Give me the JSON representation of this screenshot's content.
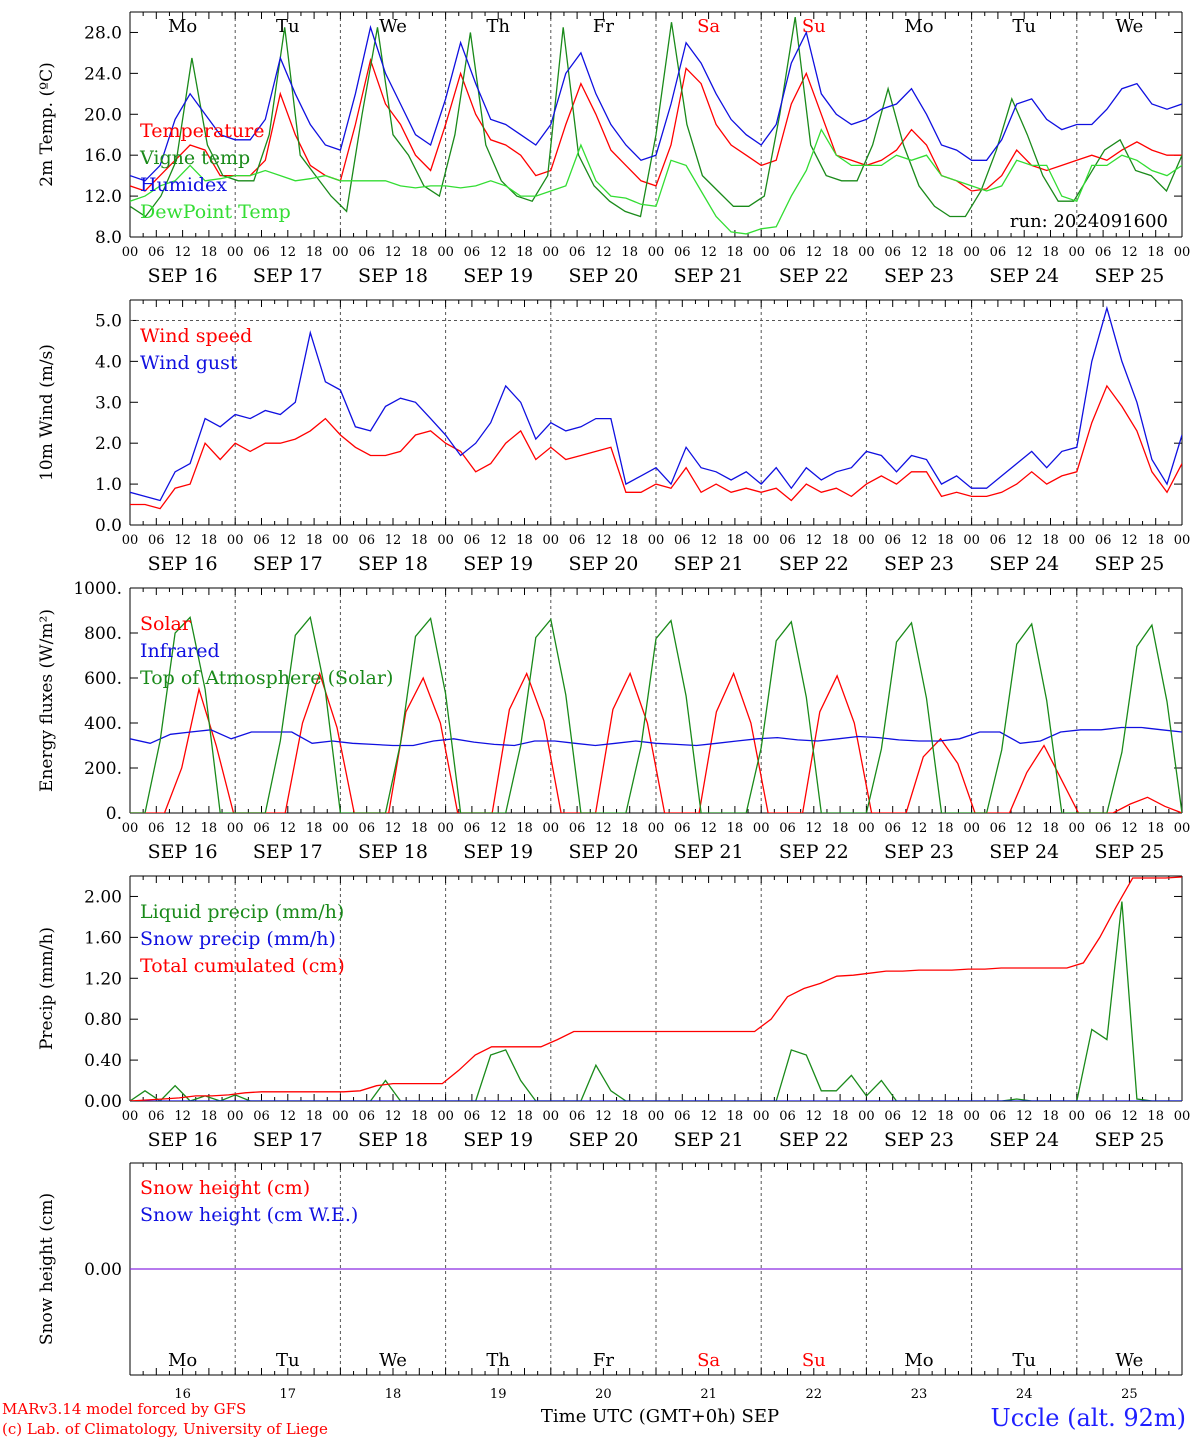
{
  "footer": {
    "model": "MARv3.14 model forced by GFS",
    "credit": "(c) Lab. of Climatology, University of Liege",
    "station": "Uccle (alt. 92m)",
    "xlabel": "Time UTC (GMT+0h)",
    "month": "SEP"
  },
  "colors": {
    "red": "#ff0000",
    "green": "#1a8a1a",
    "blue": "#1010e0",
    "lime": "#33dd33",
    "purple": "#8a2be2",
    "grid": "#555555"
  },
  "days": {
    "weekday": [
      "Mo",
      "Tu",
      "We",
      "Th",
      "Fr",
      "Sa",
      "Su",
      "Mo",
      "Tu",
      "We"
    ],
    "weekend": [
      false,
      false,
      false,
      false,
      false,
      true,
      true,
      false,
      false,
      false
    ],
    "dates": [
      "SEP 16",
      "SEP 17",
      "SEP 18",
      "SEP 19",
      "SEP 20",
      "SEP 21",
      "SEP 22",
      "SEP 23",
      "SEP 24",
      "SEP 25"
    ],
    "day_numbers": [
      "16",
      "17",
      "18",
      "19",
      "20",
      "21",
      "22",
      "23",
      "24",
      "25"
    ],
    "hour_ticks": [
      "00",
      "06",
      "12",
      "18"
    ],
    "last_tick": "00"
  },
  "chart_data": [
    {
      "type": "line",
      "ylabel": "2m Temp. (ºC)",
      "ylim": [
        8.0,
        30.0
      ],
      "yticks": [
        "8.0",
        "12.0",
        "16.0",
        "20.0",
        "24.0",
        "28.0"
      ],
      "x_start": "SEP 16 00 UTC",
      "x_step_hours": 3,
      "annotation": "run: 2024091600",
      "show_weekdays": true,
      "series": [
        {
          "name": "Temperature",
          "color": "red",
          "values": [
            13,
            12.5,
            14,
            15.5,
            17,
            16.5,
            14,
            14,
            14,
            15.5,
            22,
            18,
            15,
            14,
            13.5,
            19,
            25.3,
            21,
            19,
            16,
            14.5,
            19,
            24,
            20,
            17.5,
            17,
            16,
            14,
            14.5,
            19,
            23,
            20,
            16.5,
            15,
            13.5,
            13,
            17,
            24.5,
            23,
            19,
            17,
            16,
            15,
            15.5,
            21,
            24,
            20,
            16,
            15.5,
            15,
            15.5,
            16.5,
            18.5,
            17,
            14,
            13.5,
            12.5,
            12.7,
            14,
            16.5,
            15,
            14.5,
            15,
            15.5,
            16,
            15.5,
            16.5,
            17.3,
            16.5,
            16,
            16
          ]
        },
        {
          "name": "Vigne temp",
          "color": "green",
          "values": [
            11,
            10,
            12,
            15.5,
            25.5,
            17,
            14,
            13.5,
            13.5,
            18,
            28.5,
            16,
            14,
            12,
            10.5,
            20,
            28.5,
            18,
            16,
            13,
            12,
            18,
            28,
            17,
            13.5,
            12,
            11.5,
            14,
            28.5,
            16,
            13,
            11.5,
            10.5,
            10,
            18,
            29,
            19,
            14,
            12.5,
            11,
            11,
            12,
            20,
            29.5,
            17,
            14,
            13.5,
            13.5,
            17,
            22.5,
            17,
            13,
            11,
            10,
            10,
            12.5,
            16.5,
            21.5,
            18,
            14,
            11.5,
            11.5,
            14,
            16.5,
            17.5,
            14.5,
            14,
            12.5,
            16
          ]
        },
        {
          "name": "Humidex",
          "color": "blue",
          "values": [
            14,
            13.5,
            15,
            19.5,
            22,
            20,
            18,
            17.5,
            17.5,
            19.5,
            25.5,
            22,
            19,
            17,
            16.5,
            22,
            28.5,
            24,
            21,
            18,
            17,
            21.5,
            27,
            23,
            19.5,
            19,
            18,
            17,
            19,
            24,
            26,
            22,
            19,
            17,
            15.5,
            16,
            21,
            27,
            25,
            22,
            19.5,
            18,
            17,
            19,
            25,
            28,
            22,
            20,
            19,
            19.5,
            20.5,
            21,
            22.5,
            20,
            17,
            16.5,
            15.5,
            15.5,
            17.5,
            21,
            21.5,
            19.5,
            18.5,
            19,
            19,
            20.5,
            22.5,
            23,
            21,
            20.5,
            21
          ]
        },
        {
          "name": "DewPoint Temp",
          "color": "lime",
          "values": [
            11.5,
            12,
            13,
            13.5,
            15,
            13.5,
            13.7,
            14,
            14,
            14.5,
            14,
            13.5,
            13.7,
            14,
            13.5,
            13.5,
            13.5,
            13.5,
            13,
            12.8,
            13,
            13,
            12.8,
            13,
            13.5,
            13,
            12,
            12,
            12.5,
            13,
            17,
            13.5,
            12,
            11.8,
            11.2,
            11,
            15.5,
            15,
            12.5,
            10,
            8.5,
            8.3,
            8.8,
            9,
            12,
            14.5,
            18.5,
            16,
            15,
            15,
            15,
            16,
            15.5,
            16,
            14,
            13.5,
            13,
            12.5,
            13,
            15.5,
            15,
            15,
            12,
            11.5,
            15,
            15,
            16,
            15.5,
            14.5,
            14,
            15
          ]
        }
      ]
    },
    {
      "type": "line",
      "ylabel": "10m Wind (m/s)",
      "ylim": [
        0.0,
        5.5
      ],
      "yticks": [
        "0.0",
        "1.0",
        "2.0",
        "3.0",
        "4.0",
        "5.0"
      ],
      "x_start": "SEP 16 00 UTC",
      "x_step_hours": 3,
      "show_weekdays": false,
      "series": [
        {
          "name": "Wind speed",
          "color": "red",
          "values": [
            0.5,
            0.5,
            0.4,
            0.9,
            1.0,
            2.0,
            1.6,
            2.0,
            1.8,
            2.0,
            2.0,
            2.1,
            2.3,
            2.6,
            2.2,
            1.9,
            1.7,
            1.7,
            1.8,
            2.2,
            2.3,
            2.0,
            1.8,
            1.3,
            1.5,
            2.0,
            2.3,
            1.6,
            1.9,
            1.6,
            1.7,
            1.8,
            1.9,
            0.8,
            0.8,
            1.0,
            0.9,
            1.4,
            0.8,
            1.0,
            0.8,
            0.9,
            0.8,
            0.9,
            0.6,
            1.0,
            0.8,
            0.9,
            0.7,
            1.0,
            1.2,
            1.0,
            1.3,
            1.3,
            0.7,
            0.8,
            0.7,
            0.7,
            0.8,
            1.0,
            1.3,
            1.0,
            1.2,
            1.3,
            2.5,
            3.4,
            2.9,
            2.3,
            1.3,
            0.8,
            1.5
          ]
        },
        {
          "name": "Wind gust",
          "color": "blue",
          "values": [
            0.8,
            0.7,
            0.6,
            1.3,
            1.5,
            2.6,
            2.4,
            2.7,
            2.6,
            2.8,
            2.7,
            3.0,
            4.7,
            3.5,
            3.3,
            2.4,
            2.3,
            2.9,
            3.1,
            3.0,
            2.6,
            2.2,
            1.7,
            2.0,
            2.5,
            3.4,
            3.0,
            2.1,
            2.5,
            2.3,
            2.4,
            2.6,
            2.6,
            1.0,
            1.2,
            1.4,
            1.0,
            1.9,
            1.4,
            1.3,
            1.1,
            1.3,
            1.0,
            1.4,
            0.9,
            1.4,
            1.1,
            1.3,
            1.4,
            1.8,
            1.7,
            1.3,
            1.7,
            1.6,
            1.0,
            1.2,
            0.9,
            0.9,
            1.2,
            1.5,
            1.8,
            1.4,
            1.8,
            1.9,
            4.0,
            5.3,
            4.0,
            3.0,
            1.6,
            1.0,
            2.2
          ]
        }
      ]
    },
    {
      "type": "line",
      "ylabel": "Energy fluxes (W/m²)",
      "ylim": [
        0,
        1000
      ],
      "yticks": [
        "0.",
        "200.",
        "400.",
        "600.",
        "800.",
        "1000."
      ],
      "x_start": "SEP 16 00 UTC",
      "x_step_hours": 3,
      "show_weekdays": false,
      "series": [
        {
          "name": "Solar",
          "color": "red",
          "values": [
            0,
            0,
            0,
            200,
            550,
            300,
            0,
            0,
            0,
            0,
            400,
            620,
            380,
            0,
            0,
            0,
            450,
            600,
            400,
            0,
            0,
            0,
            460,
            620,
            410,
            0,
            0,
            0,
            460,
            620,
            400,
            0,
            0,
            0,
            450,
            620,
            400,
            0,
            0,
            0,
            450,
            610,
            400,
            0,
            0,
            0,
            250,
            330,
            220,
            0,
            0,
            0,
            180,
            300,
            150,
            0,
            0,
            0,
            40,
            70,
            30,
            0
          ]
        },
        {
          "name": "Infrared",
          "color": "blue",
          "values": [
            330,
            310,
            350,
            360,
            370,
            330,
            360,
            360,
            360,
            310,
            320,
            310,
            305,
            300,
            300,
            320,
            330,
            315,
            305,
            300,
            320,
            320,
            310,
            300,
            310,
            320,
            310,
            305,
            300,
            310,
            320,
            330,
            335,
            325,
            320,
            330,
            340,
            335,
            325,
            320,
            320,
            330,
            360,
            360,
            310,
            320,
            360,
            370,
            370,
            380,
            380,
            370,
            360
          ]
        },
        {
          "name": "Top of Atmosphere (Solar)",
          "color": "green",
          "values": [
            0,
            0,
            320,
            800,
            870,
            550,
            0,
            0,
            0,
            0,
            320,
            790,
            870,
            540,
            0,
            0,
            0,
            0,
            310,
            785,
            865,
            530,
            0,
            0,
            0,
            0,
            300,
            780,
            860,
            525,
            0,
            0,
            0,
            0,
            295,
            775,
            855,
            520,
            0,
            0,
            0,
            0,
            290,
            765,
            850,
            515,
            0,
            0,
            0,
            0,
            285,
            760,
            845,
            510,
            0,
            0,
            0,
            0,
            280,
            750,
            840,
            500,
            0,
            0,
            0,
            0,
            270,
            740,
            835,
            495,
            0
          ]
        }
      ]
    },
    {
      "type": "line",
      "ylabel": "Precip (mm/h)",
      "ylim": [
        0.0,
        2.2
      ],
      "yticks": [
        "0.00",
        "0.40",
        "0.80",
        "1.20",
        "1.60",
        "2.00"
      ],
      "x_start": "SEP 16 00 UTC",
      "x_step_hours": 3,
      "show_weekdays": false,
      "series": [
        {
          "name": "Liquid precip (mm/h)",
          "color": "green",
          "values": [
            0,
            0.1,
            0,
            0.15,
            0,
            0.05,
            0,
            0.06,
            0,
            0,
            0,
            0,
            0,
            0,
            0,
            0,
            0,
            0.2,
            0,
            0,
            0,
            0,
            0,
            0,
            0.45,
            0.5,
            0.2,
            0,
            0,
            0,
            0,
            0.35,
            0.1,
            0,
            0,
            0,
            0,
            0,
            0,
            0,
            0,
            0,
            0,
            0,
            0.5,
            0.45,
            0.1,
            0.1,
            0.25,
            0.05,
            0.2,
            0,
            0,
            0,
            0,
            0,
            0,
            0,
            0,
            0.02,
            0,
            0,
            0,
            0,
            0.7,
            0.6,
            1.95,
            0.02,
            0,
            0,
            0
          ]
        },
        {
          "name": "Snow precip (mm/h)",
          "color": "blue",
          "values": [
            0,
            0,
            0,
            0,
            0,
            0,
            0,
            0,
            0,
            0,
            0,
            0,
            0,
            0,
            0,
            0,
            0,
            0,
            0,
            0,
            0,
            0,
            0,
            0,
            0,
            0,
            0,
            0,
            0,
            0,
            0,
            0,
            0,
            0,
            0,
            0,
            0,
            0,
            0,
            0,
            0,
            0,
            0,
            0,
            0,
            0,
            0,
            0,
            0,
            0,
            0,
            0,
            0,
            0,
            0,
            0,
            0,
            0,
            0,
            0,
            0,
            0,
            0,
            0,
            0,
            0,
            0,
            0,
            0,
            0,
            0
          ]
        },
        {
          "name": "Total cumulated (cm)",
          "color": "red",
          "values": [
            0,
            0.01,
            0.02,
            0.03,
            0.05,
            0.05,
            0.06,
            0.08,
            0.09,
            0.09,
            0.09,
            0.09,
            0.09,
            0.09,
            0.1,
            0.15,
            0.17,
            0.17,
            0.17,
            0.17,
            0.3,
            0.45,
            0.53,
            0.53,
            0.53,
            0.53,
            0.6,
            0.68,
            0.68,
            0.68,
            0.68,
            0.68,
            0.68,
            0.68,
            0.68,
            0.68,
            0.68,
            0.68,
            0.68,
            0.8,
            1.02,
            1.1,
            1.15,
            1.22,
            1.23,
            1.25,
            1.27,
            1.27,
            1.28,
            1.28,
            1.28,
            1.29,
            1.29,
            1.3,
            1.3,
            1.3,
            1.3,
            1.3,
            1.35,
            1.6,
            1.9,
            2.18,
            2.18,
            2.18,
            2.19
          ]
        }
      ]
    },
    {
      "type": "line",
      "ylabel": "Snow height (cm)",
      "ylim": [
        -1,
        1
      ],
      "yticks": [
        "0.00"
      ],
      "x_start": "SEP 16 00 UTC",
      "x_step_hours": 3,
      "show_weekdays": true,
      "series": [
        {
          "name": "Snow height (cm)",
          "color": "red",
          "values": [
            0,
            0
          ]
        },
        {
          "name": "Snow height (cm W.E.)",
          "color": "blue",
          "values": [
            0,
            0
          ]
        }
      ]
    }
  ]
}
